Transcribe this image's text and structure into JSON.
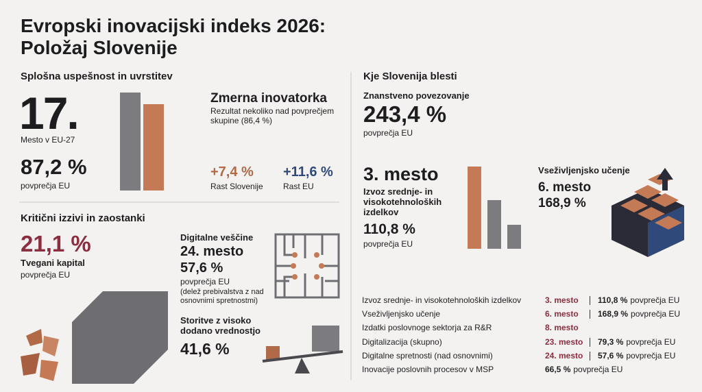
{
  "header": {
    "title_lines": [
      "Evropski inovacijski indeks 2026:",
      "Položaj Slovenije"
    ]
  },
  "overall": {
    "heading": "Splošna uspešnost in uvrstitev",
    "rank": "17.",
    "rank_label": "Mesto v EU-27",
    "score": "87,2 %",
    "score_label": "povprečja EU",
    "category": "Zmerna inovatorka",
    "description": "Rezultat nekoliko nad povprečjem skupine (86,4 %)",
    "growth": [
      {
        "value": "+7,4 %",
        "label": "Rast Slovenije"
      },
      {
        "value": "+11,6 %",
        "label": "Rast EU"
      }
    ]
  },
  "challenges": {
    "heading": "Kritični izzivi in zaostanki",
    "venture": {
      "value": "21,1 %",
      "title": "Tvegani kapital",
      "sub": "povprečja EU"
    },
    "digital": {
      "title": "Digitalne veščine",
      "rank": "24. mesto",
      "value": "57,6 %",
      "sub": "povprečja EU",
      "note": "(delež prebivalstva z nad osnovnimi spretnostmi)"
    },
    "services": {
      "title": "Storitve z visoko dodano vrednostjo",
      "value": "41,6 %"
    }
  },
  "strengths": {
    "heading": "Kje Slovenija blesti",
    "science": {
      "title": "Znanstveno povezovanje",
      "value": "243,4 %",
      "sub": "povprečja EU"
    },
    "exports": {
      "rank": "3. mesto",
      "title": "Izvoz srednje- in visokotehnoloških izdelkov",
      "value": "110,8 %",
      "sub": "povprečja EU"
    },
    "lifelong": {
      "title": "Vseživljenjsko učenje",
      "rank": "6. mesto",
      "value": "168,9 %"
    }
  },
  "table": {
    "rows": [
      {
        "label": "Izvoz srednje- in visokotehnoloških izdelkov",
        "rank": "3. mesto",
        "value": "110,8 %",
        "suffix": "povprečja EU"
      },
      {
        "label": "Vseživljenjsko učenje",
        "rank": "6. mesto",
        "value": "168,9 %",
        "suffix": "povprečja EU"
      },
      {
        "label": "Izdatki poslovnoge sektorja za R&R",
        "rank": "8. mesto"
      },
      {
        "label": "Digitalizacija (skupno)",
        "rank": "23. mesto",
        "value": "79,3 %",
        "suffix": "povprečja EU"
      },
      {
        "label": "Digitalne spretnosti (nad osnovnimi)",
        "rank": "24. mesto",
        "value": "57,6 %",
        "suffix": "povprečja EU"
      },
      {
        "label": "Inovacije poslovnih procesov v MSP",
        "value": "66,5 %",
        "suffix": "povprečja EU"
      }
    ]
  }
}
